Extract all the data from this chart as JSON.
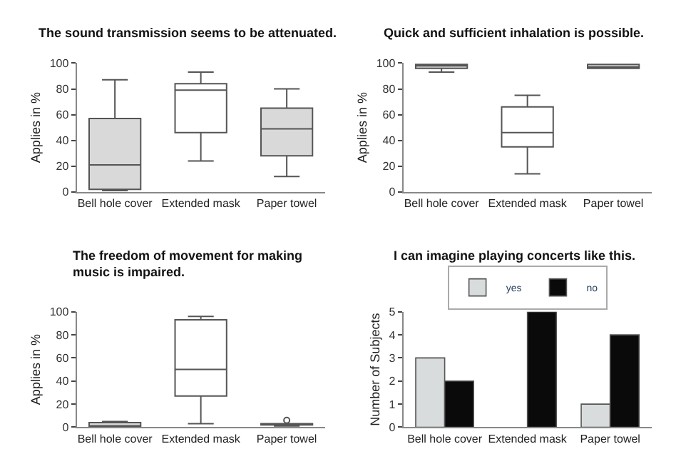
{
  "chart_data": [
    {
      "type": "box",
      "title": "The sound transmission seems to be attenuated.",
      "ylabel": "Applies in %",
      "categories": [
        "Bell hole cover",
        "Extended mask",
        "Paper towel"
      ],
      "colors": [
        "#d9d9d9",
        "#ffffff",
        "#d9d9d9"
      ],
      "boxes": [
        {
          "low": 1,
          "q1": 2,
          "median": 21,
          "q3": 57,
          "high": 87
        },
        {
          "low": 24,
          "q1": 46,
          "median": 79,
          "q3": 84,
          "high": 93
        },
        {
          "low": 12,
          "q1": 28,
          "median": 49,
          "q3": 65,
          "high": 80
        }
      ],
      "ylim": [
        0,
        100
      ],
      "yticks": [
        0,
        20,
        40,
        60,
        80,
        100
      ]
    },
    {
      "type": "box",
      "title": "Quick and sufficient inhalation is possible.",
      "ylabel": "Applies in %",
      "categories": [
        "Bell hole cover",
        "Extended mask",
        "Paper towel"
      ],
      "colors": [
        "#d9d9d9",
        "#ffffff",
        "#d9d9d9"
      ],
      "boxes": [
        {
          "low": 93,
          "q1": 96,
          "median": 98,
          "q3": 99,
          "high": 99
        },
        {
          "low": 14,
          "q1": 35,
          "median": 46,
          "q3": 66,
          "high": 75
        },
        {
          "low": 96,
          "q1": 96,
          "median": 97,
          "q3": 99,
          "high": 99
        }
      ],
      "ylim": [
        0,
        100
      ],
      "yticks": [
        0,
        20,
        40,
        60,
        80,
        100
      ]
    },
    {
      "type": "box",
      "title": "The freedom of movement for making music is impaired.",
      "ylabel": "Applies in %",
      "categories": [
        "Bell hole cover",
        "Extended mask",
        "Paper towel"
      ],
      "colors": [
        "#d9d9d9",
        "#ffffff",
        "#d9d9d9"
      ],
      "boxes": [
        {
          "low": 0,
          "q1": 0,
          "median": 1,
          "q3": 4,
          "high": 5
        },
        {
          "low": 3,
          "q1": 27,
          "median": 50,
          "q3": 93,
          "high": 96
        },
        {
          "low": 1,
          "q1": 2,
          "median": 2,
          "q3": 3,
          "high": 3,
          "outliers": [
            6
          ]
        }
      ],
      "ylim": [
        0,
        100
      ],
      "yticks": [
        0,
        20,
        40,
        60,
        80,
        100
      ]
    },
    {
      "type": "bar",
      "title": "I can imagine playing concerts like this.",
      "ylabel": "Number of Subjects",
      "categories": [
        "Bell hole cover",
        "Extended mask",
        "Paper towel"
      ],
      "series": [
        {
          "name": "yes",
          "color": "#d9dcdc",
          "values": [
            3,
            0,
            1
          ]
        },
        {
          "name": "no",
          "color": "#0a0a0a",
          "values": [
            2,
            5,
            4
          ]
        }
      ],
      "ylim": [
        0,
        5
      ],
      "yticks": [
        0,
        1,
        2,
        3,
        4,
        5
      ],
      "legend": "top"
    }
  ]
}
